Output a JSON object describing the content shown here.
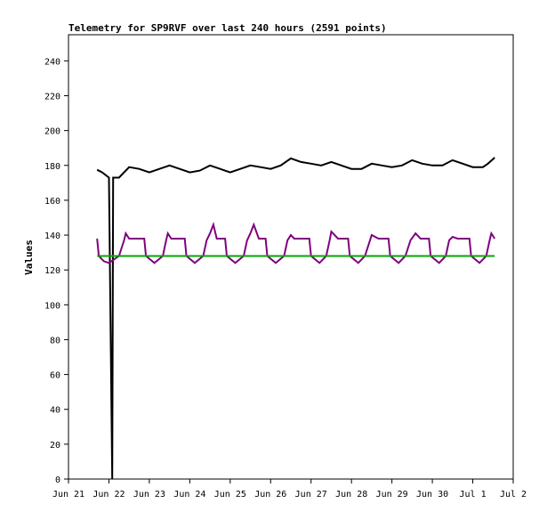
{
  "chart_data": {
    "type": "line",
    "title": "Telemetry for SP9RVF over last 240 hours (2591 points)",
    "xlabel": "",
    "ylabel": "Values",
    "ylim": [
      0,
      255
    ],
    "xlim_days": [
      0,
      11
    ],
    "yticks": [
      0,
      20,
      40,
      60,
      80,
      100,
      120,
      140,
      160,
      180,
      200,
      220,
      240
    ],
    "xtick_labels": [
      "Jun 21",
      "Jun 22",
      "Jun 23",
      "Jun 24",
      "Jun 25",
      "Jun 26",
      "Jun 27",
      "Jun 28",
      "Jun 29",
      "Jun 30",
      "Jul 1",
      "Jul 2"
    ],
    "grid": false,
    "legend": "none",
    "series": [
      {
        "color": "#000000",
        "points": [
          [
            "Jun 21 17:00",
            177.5
          ],
          [
            "Jun 21 20:00",
            176
          ],
          [
            "Jun 22 00:00",
            173
          ],
          [
            "Jun 22 02:00",
            0
          ],
          [
            "Jun 22 02:30",
            173
          ],
          [
            "Jun 22 06:00",
            173
          ],
          [
            "Jun 22 12:00",
            179
          ],
          [
            "Jun 22 18:00",
            178
          ],
          [
            "Jun 23 00:00",
            176
          ],
          [
            "Jun 23 06:00",
            178
          ],
          [
            "Jun 23 12:00",
            180
          ],
          [
            "Jun 23 18:00",
            178
          ],
          [
            "Jun 24 00:00",
            176
          ],
          [
            "Jun 24 06:00",
            177
          ],
          [
            "Jun 24 12:00",
            180
          ],
          [
            "Jun 24 18:00",
            178
          ],
          [
            "Jun 25 00:00",
            176
          ],
          [
            "Jun 25 06:00",
            178
          ],
          [
            "Jun 25 12:00",
            180
          ],
          [
            "Jun 25 18:00",
            179
          ],
          [
            "Jun 26 00:00",
            178
          ],
          [
            "Jun 26 06:00",
            180
          ],
          [
            "Jun 26 12:00",
            184
          ],
          [
            "Jun 26 18:00",
            182
          ],
          [
            "Jun 27 00:00",
            181
          ],
          [
            "Jun 27 06:00",
            180
          ],
          [
            "Jun 27 12:00",
            182
          ],
          [
            "Jun 27 18:00",
            180
          ],
          [
            "Jun 28 00:00",
            178
          ],
          [
            "Jun 28 06:00",
            178
          ],
          [
            "Jun 28 12:00",
            181
          ],
          [
            "Jun 28 18:00",
            180
          ],
          [
            "Jun 29 00:00",
            179
          ],
          [
            "Jun 29 06:00",
            180
          ],
          [
            "Jun 29 12:00",
            183
          ],
          [
            "Jun 29 18:00",
            181
          ],
          [
            "Jun 30 00:00",
            180
          ],
          [
            "Jun 30 06:00",
            180
          ],
          [
            "Jun 30 12:00",
            183
          ],
          [
            "Jun 30 18:00",
            181
          ],
          [
            "Jul 1 00:00",
            179
          ],
          [
            "Jul 1 06:00",
            179
          ],
          [
            "Jul 1 09:00",
            181
          ],
          [
            "Jul 1 13:00",
            184.5
          ]
        ]
      },
      {
        "color": "#800080",
        "points": [
          [
            "Jun 21 17:00",
            138
          ],
          [
            "Jun 21 18:00",
            128
          ],
          [
            "Jun 21 21:00",
            125
          ],
          [
            "Jun 22 00:00",
            124
          ],
          [
            "Jun 22 06:00",
            128
          ],
          [
            "Jun 22 09:00",
            137
          ],
          [
            "Jun 22 10:00",
            141
          ],
          [
            "Jun 22 12:00",
            138
          ],
          [
            "Jun 22 21:00",
            138
          ],
          [
            "Jun 22 22:00",
            128
          ],
          [
            "Jun 23 03:00",
            124
          ],
          [
            "Jun 23 08:00",
            128
          ],
          [
            "Jun 23 10:00",
            137
          ],
          [
            "Jun 23 11:00",
            141
          ],
          [
            "Jun 23 13:00",
            138
          ],
          [
            "Jun 23 21:00",
            138
          ],
          [
            "Jun 23 22:00",
            128
          ],
          [
            "Jun 24 03:00",
            124
          ],
          [
            "Jun 24 08:00",
            128
          ],
          [
            "Jun 24 10:00",
            137
          ],
          [
            "Jun 24 12:00",
            141
          ],
          [
            "Jun 24 14:00",
            146
          ],
          [
            "Jun 24 16:00",
            138
          ],
          [
            "Jun 24 21:00",
            138
          ],
          [
            "Jun 24 22:00",
            128
          ],
          [
            "Jun 25 03:00",
            124
          ],
          [
            "Jun 25 08:00",
            128
          ],
          [
            "Jun 25 10:00",
            137
          ],
          [
            "Jun 25 12:00",
            141
          ],
          [
            "Jun 25 14:00",
            146
          ],
          [
            "Jun 25 17:00",
            138
          ],
          [
            "Jun 25 21:00",
            138
          ],
          [
            "Jun 25 22:00",
            128
          ],
          [
            "Jun 26 03:00",
            124
          ],
          [
            "Jun 26 08:00",
            128
          ],
          [
            "Jun 26 10:00",
            137
          ],
          [
            "Jun 26 12:00",
            140
          ],
          [
            "Jun 26 14:00",
            138
          ],
          [
            "Jun 26 23:00",
            138
          ],
          [
            "Jun 27 00:00",
            128
          ],
          [
            "Jun 27 05:00",
            124
          ],
          [
            "Jun 27 09:00",
            128
          ],
          [
            "Jun 27 11:00",
            137
          ],
          [
            "Jun 27 12:00",
            142
          ],
          [
            "Jun 27 16:00",
            138
          ],
          [
            "Jun 27 22:00",
            138
          ],
          [
            "Jun 27 23:00",
            128
          ],
          [
            "Jun 28 04:00",
            124
          ],
          [
            "Jun 28 08:00",
            128
          ],
          [
            "Jun 28 11:00",
            137
          ],
          [
            "Jun 28 12:00",
            140
          ],
          [
            "Jun 28 16:00",
            138
          ],
          [
            "Jun 28 22:00",
            138
          ],
          [
            "Jun 28 23:00",
            128
          ],
          [
            "Jun 29 04:00",
            124
          ],
          [
            "Jun 29 08:00",
            128
          ],
          [
            "Jun 29 11:00",
            137
          ],
          [
            "Jun 29 14:00",
            141
          ],
          [
            "Jun 29 17:00",
            138
          ],
          [
            "Jun 29 22:00",
            138
          ],
          [
            "Jun 29 23:00",
            128
          ],
          [
            "Jun 30 04:00",
            124
          ],
          [
            "Jun 30 08:00",
            128
          ],
          [
            "Jun 30 10:00",
            137
          ],
          [
            "Jun 30 12:00",
            139
          ],
          [
            "Jun 30 15:00",
            138
          ],
          [
            "Jun 30 22:00",
            138
          ],
          [
            "Jun 30 23:00",
            128
          ],
          [
            "Jul 1 04:00",
            124
          ],
          [
            "Jul 1 08:00",
            128
          ],
          [
            "Jul 1 10:00",
            137
          ],
          [
            "Jul 1 11:00",
            141
          ],
          [
            "Jul 1 13:00",
            138
          ]
        ]
      },
      {
        "color": "#00aa00",
        "points": [
          [
            "Jun 21 17:00",
            128
          ],
          [
            "Jul 1 13:00",
            128
          ]
        ]
      }
    ]
  }
}
